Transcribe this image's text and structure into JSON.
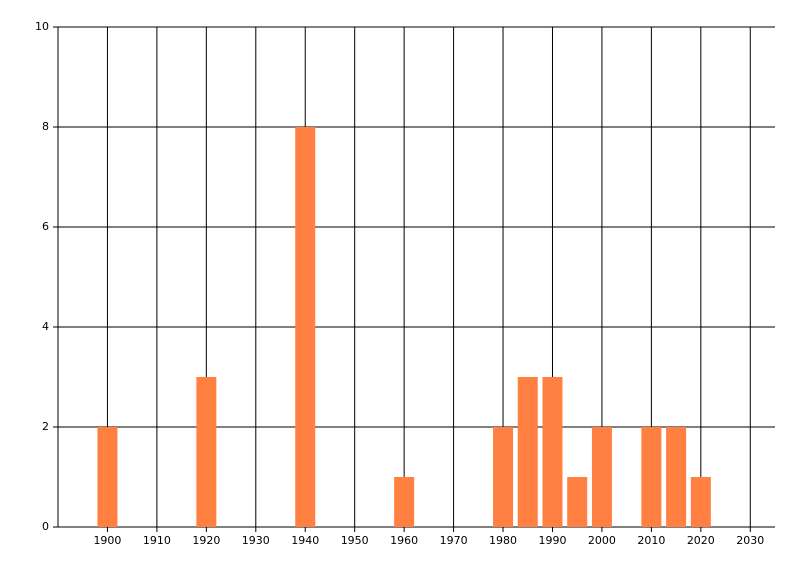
{
  "chart_data": {
    "type": "bar",
    "x": [
      1900,
      1920,
      1940,
      1960,
      1980,
      1985,
      1990,
      1995,
      2000,
      2010,
      2015,
      2020
    ],
    "values": [
      2,
      3,
      8,
      1,
      2,
      3,
      3,
      1,
      2,
      2,
      2,
      1
    ],
    "color": "#ff8040",
    "xlim": [
      1890,
      2035
    ],
    "ylim": [
      0,
      10
    ],
    "xticks": [
      1900,
      1910,
      1920,
      1930,
      1940,
      1950,
      1960,
      1970,
      1980,
      1990,
      2000,
      2010,
      2020,
      2030
    ],
    "yticks": [
      0,
      2,
      4,
      6,
      8,
      10
    ],
    "grid": true
  }
}
